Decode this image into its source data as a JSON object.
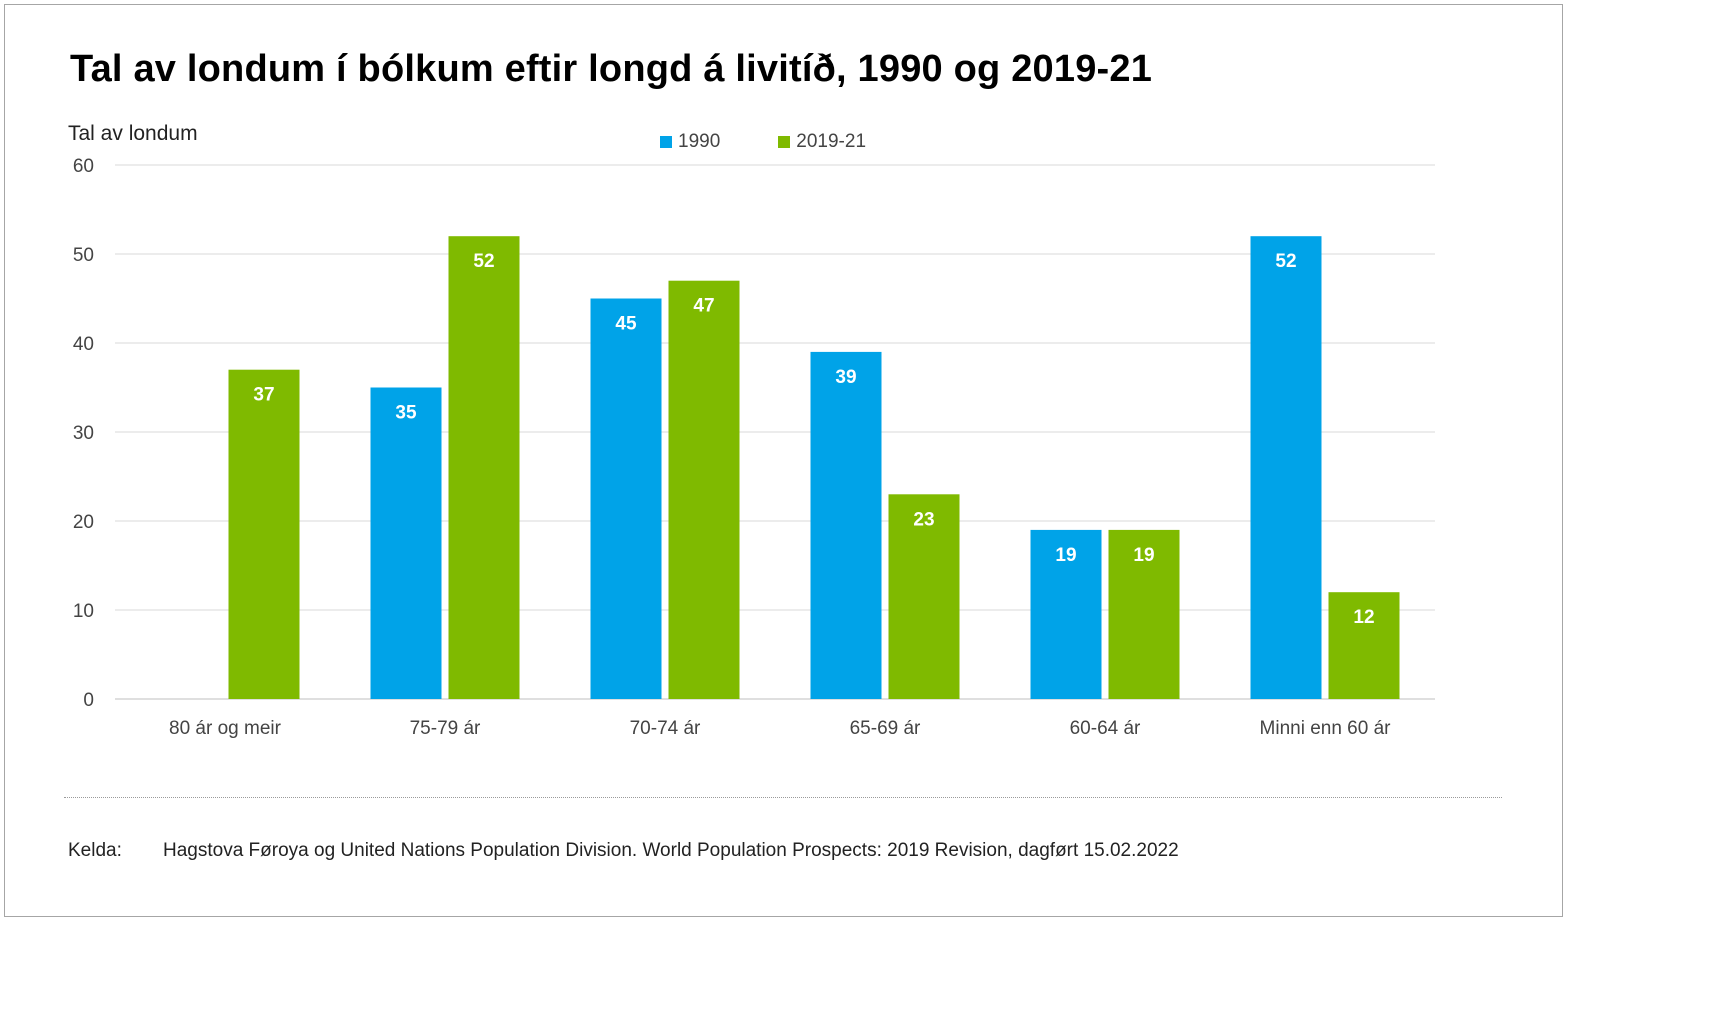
{
  "title": "Tal av londum í bólkum eftir longd á livitíð, 1990 og 2019-21",
  "source": {
    "label": "Kelda:",
    "text": "Hagstova Føroya og United Nations Population Division. World Population Prospects: 2019 Revision, dagført 15.02.2022"
  },
  "chart_data": {
    "type": "bar",
    "title": "Tal av londum í bólkum eftir longd á livitíð, 1990 og 2019-21",
    "xlabel": "",
    "ylabel": "Tal av londum",
    "ylim": [
      0,
      60
    ],
    "yticks": [
      0,
      10,
      20,
      30,
      40,
      50,
      60
    ],
    "grid": true,
    "legend_position": "top-center",
    "categories": [
      "80 ár og meir",
      "75-79 ár",
      "70-74 ár",
      "65-69 ár",
      "60-64 ár",
      "Minni enn 60 ár"
    ],
    "series": [
      {
        "name": "1990",
        "color": "#00a3e8",
        "values": [
          null,
          35,
          45,
          39,
          19,
          52
        ]
      },
      {
        "name": "2019-21",
        "color": "#7fba00",
        "values": [
          37,
          52,
          47,
          23,
          19,
          12
        ]
      }
    ]
  }
}
